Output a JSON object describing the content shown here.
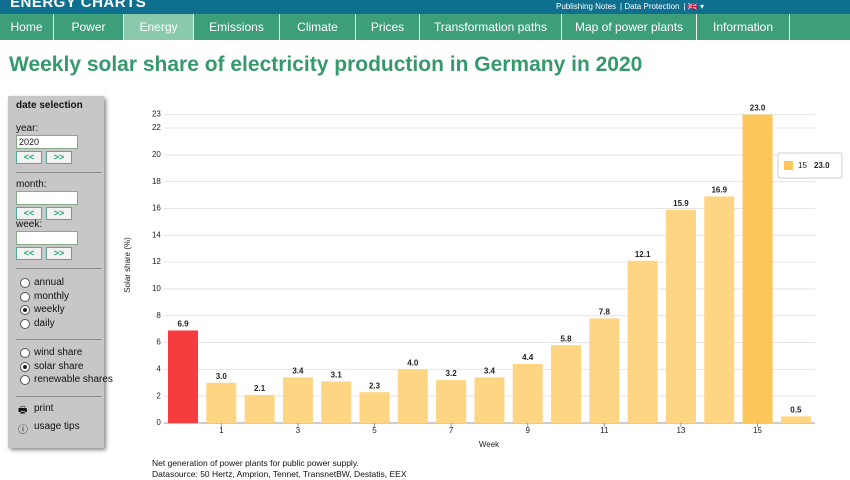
{
  "header": {
    "brand": "ENERGY CHARTS",
    "links": [
      "Publishing Notes",
      "Data Protection"
    ]
  },
  "nav": {
    "items": [
      "Home",
      "Power",
      "Energy",
      "Emissions",
      "Climate",
      "Prices",
      "Transformation paths",
      "Map of power plants",
      "Information"
    ],
    "active": 2
  },
  "page_title": "Weekly solar share of electricity production in Germany in 2020",
  "sidebar": {
    "heading": "date selection",
    "year_label": "year:",
    "year_value": "2020",
    "month_label": "month:",
    "week_label": "week:",
    "prev": "<<",
    "next": ">>",
    "interval_options": [
      "annual",
      "monthly",
      "weekly",
      "daily"
    ],
    "interval_checked": 2,
    "share_options": [
      "wind share",
      "solar share",
      "renewable shares"
    ],
    "share_checked": 1,
    "print": "print",
    "usage_tips": "usage tips"
  },
  "chart_data": {
    "type": "bar",
    "categories": [
      null,
      "1",
      null,
      "3",
      null,
      "5",
      null,
      "7",
      null,
      "9",
      null,
      "11",
      null,
      "13",
      null,
      "15",
      null
    ],
    "values": [
      6.9,
      3.0,
      2.1,
      3.4,
      3.1,
      2.3,
      4.0,
      3.2,
      3.4,
      4.4,
      5.8,
      7.8,
      12.1,
      15.9,
      16.9,
      23.0,
      0.5
    ],
    "value_labels": [
      "6.9",
      "3.0",
      "2.1",
      "3.4",
      "3.1",
      "2.3",
      "4.0",
      "3.2",
      "3.4",
      "4.4",
      "5.8",
      "7.8",
      "12.1",
      "15.9",
      "16.9",
      "23.0",
      "0.5"
    ],
    "colors": [
      "#f63c3c",
      "#fdd583",
      "#fdd583",
      "#fdd583",
      "#fdd583",
      "#fdd583",
      "#fdd583",
      "#fdd583",
      "#fdd583",
      "#fdd583",
      "#fdd583",
      "#fdd583",
      "#fdd583",
      "#fdd583",
      "#fdd583",
      "#fcc65a",
      "#fdd583"
    ],
    "ylim": [
      0,
      23
    ],
    "yticks": [
      0,
      2,
      4,
      6,
      8,
      10,
      12,
      14,
      16,
      18,
      20,
      22,
      23
    ],
    "grid": true,
    "y_label": "Solar share (%)",
    "x_label": "Week",
    "tooltip_index": 15
  },
  "footnote": [
    "Net generation of power plants for public power supply.",
    "Datasource: 50 Hertz, Amprion, Tennet, TransnetBW, Destatis, EEX"
  ]
}
